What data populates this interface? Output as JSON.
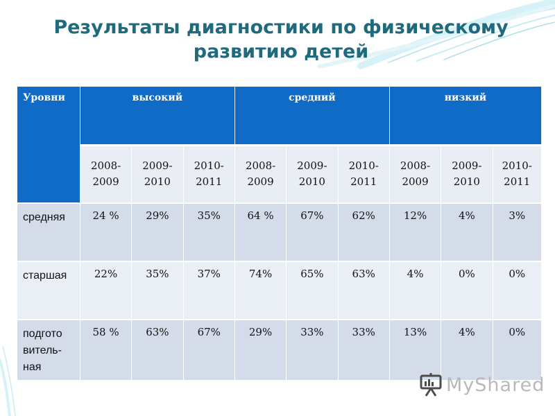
{
  "title": "Результаты диагностики по физическому развитию детей",
  "table": {
    "corner_label": "Уровни",
    "groups": [
      "высокий",
      "средний",
      "низкий"
    ],
    "years": [
      "2008-\n2009",
      "2009-\n2010",
      "2010-\n2011",
      "2008-\n2009",
      "2009-\n2010",
      "2010-\n2011",
      "2008-\n2009",
      "2009-\n2010",
      "2010-\n2011"
    ],
    "rows": [
      {
        "label": "средняя",
        "values": [
          "24 %",
          "29%",
          "35%",
          "64 %",
          "67%",
          "62%",
          "12%",
          "4%",
          "3%"
        ]
      },
      {
        "label": "старшая",
        "values": [
          "22%",
          "35%",
          "37%",
          "74%",
          "65%",
          "63%",
          "4%",
          "0%",
          "0%"
        ]
      },
      {
        "label": "подгото\nвитель-\nная",
        "values": [
          "58 %",
          "63%",
          "67%",
          "29%",
          "33%",
          "33%",
          "13%",
          "4%",
          "0%"
        ]
      }
    ]
  },
  "watermark": "MyShared",
  "colors": {
    "header": "#0f6bc6",
    "title": "#1f6a7c",
    "row_dark": "#d4dbe9",
    "row_light": "#eaeef5"
  }
}
